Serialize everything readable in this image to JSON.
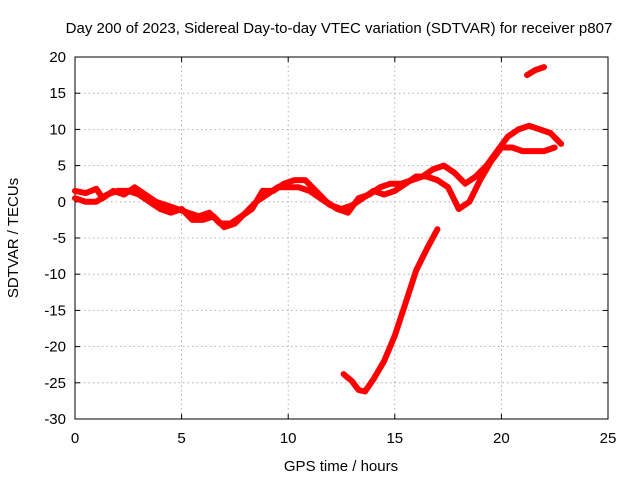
{
  "chart_data": {
    "type": "line",
    "title": "Day 200 of 2023, Sidereal Day-to-day VTEC variation (SDTVAR) for receiver p807",
    "xlabel": "GPS time / hours",
    "ylabel": "SDTVAR / TECUs",
    "xlim": [
      0,
      25
    ],
    "ylim": [
      -30,
      20
    ],
    "xticks": [
      0,
      5,
      10,
      15,
      20,
      25
    ],
    "yticks": [
      -30,
      -25,
      -20,
      -15,
      -10,
      -5,
      0,
      5,
      10,
      15,
      20
    ],
    "grid": true,
    "line_color": "#ff0000",
    "series": [
      {
        "name": "track-a",
        "x": [
          0.0,
          0.5,
          1.0,
          1.3,
          1.8,
          2.3,
          2.8,
          3.3,
          3.8,
          4.3,
          4.8,
          5.3,
          5.8,
          6.3,
          6.8,
          7.3,
          7.8,
          8.3,
          8.8,
          9.3,
          9.8,
          10.3,
          10.8,
          11.3,
          11.8,
          12.3,
          12.8,
          13.3,
          13.8,
          14.3,
          14.8,
          15.3,
          15.8,
          16.3,
          16.8,
          17.3,
          17.8,
          18.3,
          18.8,
          19.3,
          19.8,
          20.3,
          20.8,
          21.3,
          21.8,
          22.3,
          22.8
        ],
        "y": [
          1.5,
          1.2,
          1.8,
          0.5,
          1.5,
          1.0,
          2.0,
          1.0,
          0.0,
          -0.5,
          -1.0,
          -1.5,
          -2.0,
          -1.5,
          -3.0,
          -3.0,
          -2.0,
          -1.0,
          1.5,
          1.5,
          2.5,
          3.0,
          3.0,
          1.5,
          0.0,
          -1.0,
          -1.5,
          0.5,
          1.0,
          2.0,
          2.5,
          2.5,
          3.0,
          3.5,
          4.5,
          5.0,
          4.0,
          2.5,
          3.5,
          5.0,
          7.0,
          9.0,
          10.0,
          10.5,
          10.0,
          9.5,
          8.0
        ]
      },
      {
        "name": "track-b",
        "x": [
          0.0,
          0.5,
          1.0,
          1.5,
          2.0,
          2.5,
          3.0,
          3.5,
          4.0,
          4.5,
          5.0,
          5.5,
          6.0,
          6.5,
          7.0,
          7.5,
          8.0,
          8.5,
          9.0,
          9.5,
          10.0,
          10.5,
          11.0,
          11.5,
          12.0,
          12.5,
          13.0,
          13.5,
          14.0,
          14.5,
          15.0,
          15.5,
          16.0,
          16.5,
          17.0,
          17.5,
          18.0,
          18.5,
          19.0,
          19.5,
          20.0,
          20.5,
          21.0,
          21.5,
          22.0,
          22.5
        ],
        "y": [
          0.5,
          0.0,
          0.0,
          1.0,
          1.5,
          1.5,
          1.0,
          0.0,
          -1.0,
          -1.5,
          -1.0,
          -2.5,
          -2.5,
          -2.0,
          -3.5,
          -3.0,
          -1.5,
          0.0,
          1.0,
          2.0,
          2.0,
          2.0,
          1.5,
          0.5,
          -0.5,
          -1.0,
          -0.5,
          0.5,
          1.5,
          1.0,
          1.5,
          2.5,
          3.5,
          3.5,
          3.0,
          2.0,
          -1.0,
          0.0,
          3.0,
          5.5,
          7.5,
          7.5,
          7.0,
          7.0,
          7.0,
          7.5
        ]
      },
      {
        "name": "track-c",
        "x": [
          12.6,
          13.0,
          13.3,
          13.6,
          14.0,
          14.5,
          15.0,
          15.5,
          16.0,
          16.5,
          17.0
        ],
        "y": [
          -23.8,
          -24.8,
          -26.0,
          -26.2,
          -24.5,
          -22.0,
          -18.5,
          -14.0,
          -9.5,
          -6.5,
          -3.8
        ]
      },
      {
        "name": "track-d",
        "x": [
          21.2,
          21.6,
          22.0
        ],
        "y": [
          17.5,
          18.2,
          18.6
        ]
      }
    ]
  }
}
